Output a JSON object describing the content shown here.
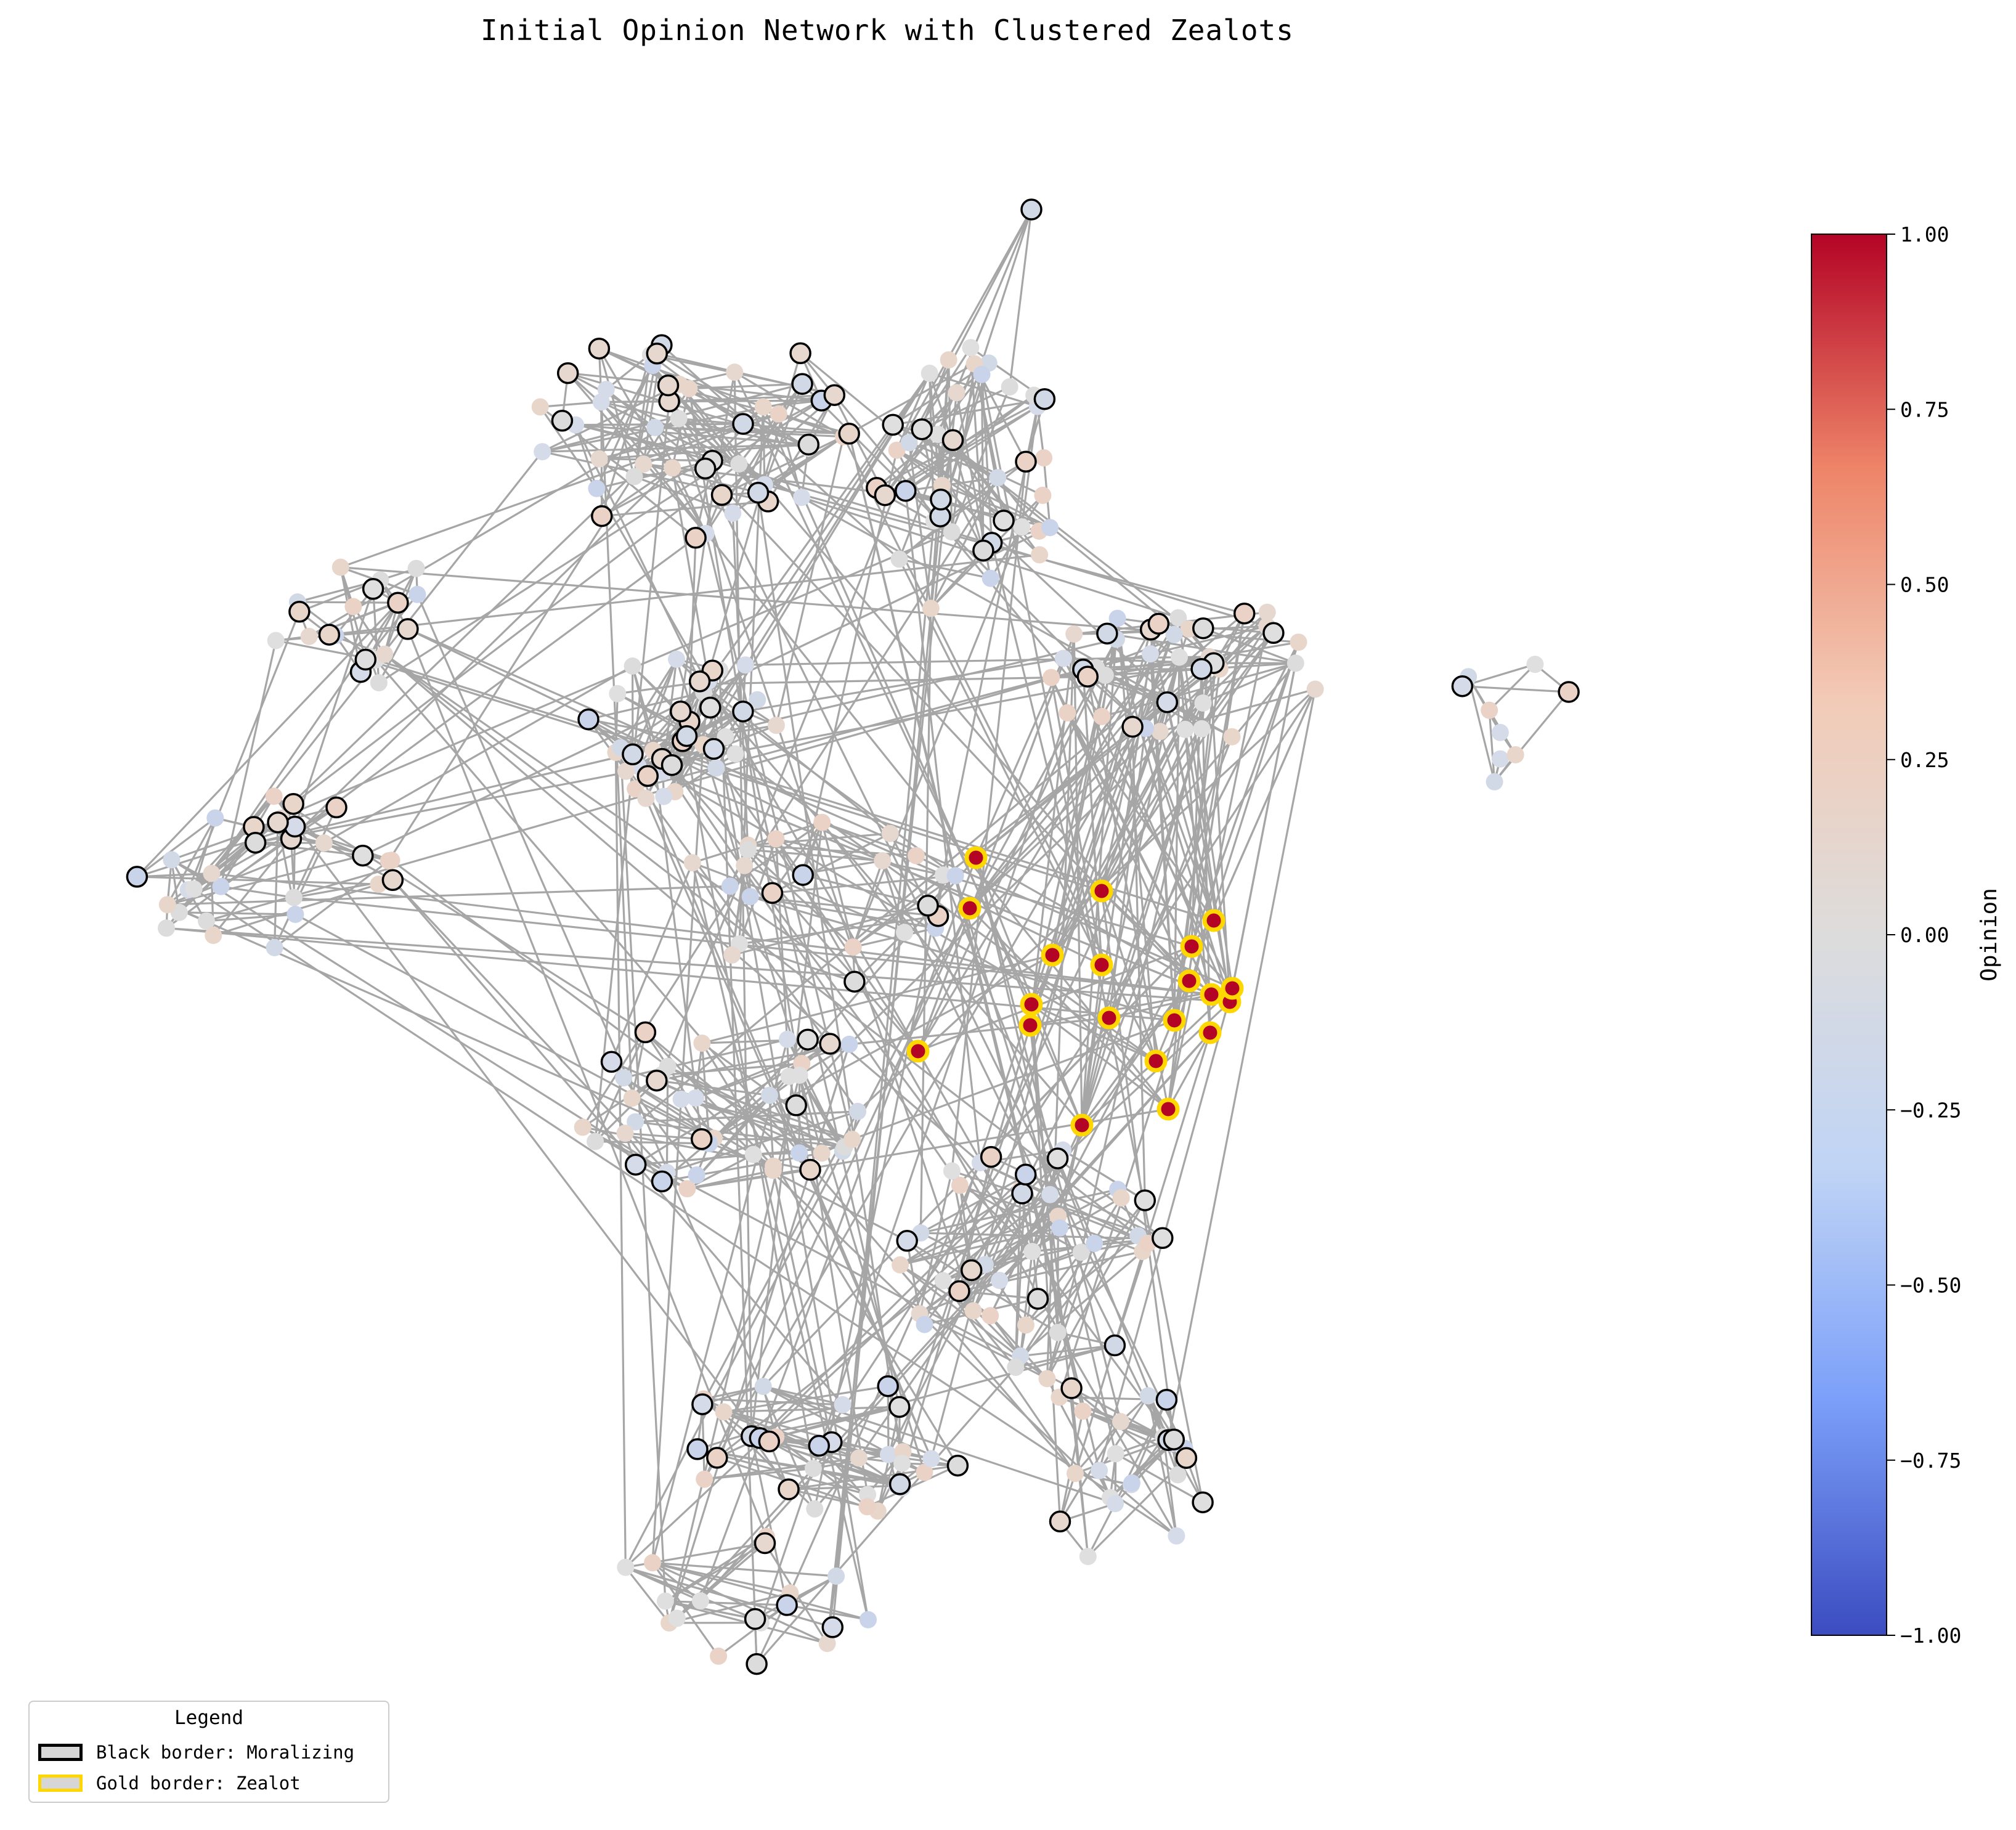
{
  "title": "Initial Opinion Network with Clustered Zealots",
  "colorbar": {
    "label": "Opinion",
    "min": -1.0,
    "max": 1.0,
    "ticks": [
      "1.00",
      "0.75",
      "0.50",
      "0.25",
      "0.00",
      "−0.25",
      "−0.50",
      "−0.75",
      "−1.00"
    ],
    "colormap": "coolwarm",
    "stops": [
      "#3b4cc0",
      "#7b9ff9",
      "#c0d4f5",
      "#dddcdc",
      "#f2cbb7",
      "#ee8468",
      "#b40426"
    ]
  },
  "legend": {
    "title": "Legend",
    "items": [
      {
        "label": "Black border: Moralizing",
        "border": "#000000"
      },
      {
        "label": "Gold border: Zealot",
        "border": "#FFD700"
      }
    ]
  },
  "colors": {
    "edge": "#a6a6a6",
    "zealot_fill": "#b40426",
    "zealot_border": "#FFD700",
    "moral_border": "#000000"
  }
}
